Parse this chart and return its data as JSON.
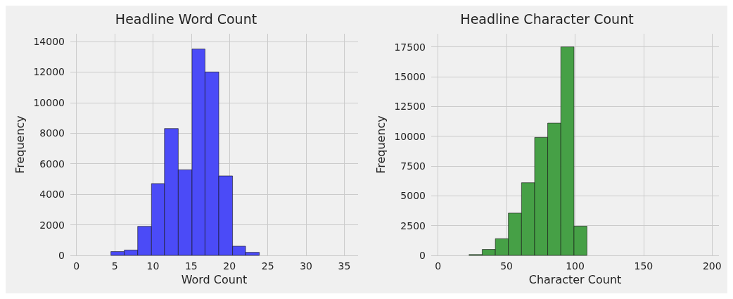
{
  "chart_data": [
    {
      "type": "histogram",
      "title": "Headline Word Count",
      "xlabel": "Word Count",
      "ylabel": "Frequency",
      "color": "#4b4bf7",
      "bins": [
        4.5,
        6.25,
        8.0,
        9.8,
        11.5,
        13.3,
        15.1,
        16.8,
        18.6,
        20.4,
        22.1,
        23.9
      ],
      "values": [
        250,
        350,
        1900,
        4700,
        8300,
        5600,
        13500,
        12000,
        5200,
        600,
        200
      ],
      "xlim": [
        -0.8,
        36.8
      ],
      "xticks": [
        0,
        5,
        10,
        15,
        20,
        25,
        30,
        35
      ],
      "ylim": [
        0,
        14500
      ],
      "yticks": [
        0,
        2000,
        4000,
        6000,
        8000,
        10000,
        12000,
        14000
      ],
      "grid": true
    },
    {
      "type": "histogram",
      "title": "Headline Character Count",
      "xlabel": "Character Count",
      "ylabel": "Frequency",
      "color": "#46a046",
      "bins": [
        22.6,
        32.2,
        41.8,
        51.3,
        60.9,
        70.5,
        80.0,
        89.6,
        99.2,
        108.7
      ],
      "values": [
        70,
        500,
        1400,
        3550,
        6100,
        9900,
        11100,
        17500,
        2450
      ],
      "xlim": [
        -5,
        205
      ],
      "xticks": [
        0,
        50,
        100,
        150,
        200
      ],
      "ylim": [
        0,
        18600
      ],
      "yticks": [
        0,
        2500,
        5000,
        7500,
        10000,
        12500,
        15000,
        17500
      ],
      "grid": true
    }
  ]
}
